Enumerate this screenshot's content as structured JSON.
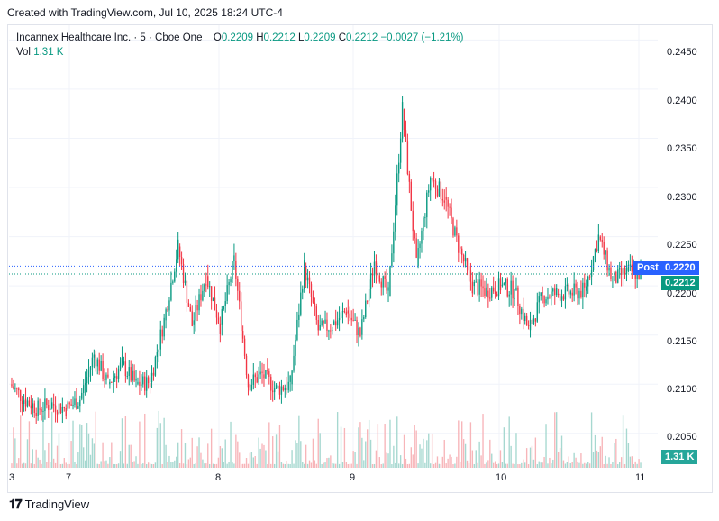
{
  "header": {
    "created_text": "Created with TradingView.com, Jul 10, 2025 18:24 UTC-4"
  },
  "legend": {
    "symbol": "Incannex Healthcare Inc. · 5 · Cboe One",
    "o_label": "O",
    "o_value": "0.2209",
    "h_label": "H",
    "h_value": "0.2212",
    "l_label": "L",
    "l_value": "0.2209",
    "c_label": "C",
    "c_value": "0.2212",
    "change": "−0.0027 (−1.21%)",
    "vol_label": "Vol",
    "vol_value": "1.31 K"
  },
  "colors": {
    "up": "#089981",
    "down": "#f23645",
    "up_volume": "#a6d8d0",
    "down_volume": "#f7b5b9",
    "post_tag": "#2962ff",
    "grid": "#f0f3fa"
  },
  "footer": {
    "brand": "TradingView"
  },
  "chart_data": {
    "type": "candlestick",
    "timeframe": "5",
    "ylim": [
      0.2015,
      0.2465
    ],
    "y_ticks": [
      "0.2450",
      "0.2400",
      "0.2350",
      "0.2300",
      "0.2250",
      "0.2200",
      "0.2150",
      "0.2100",
      "0.2050"
    ],
    "x_ticks": [
      "3",
      "7",
      "8",
      "9",
      "10",
      "11"
    ],
    "post_price_label": "Post",
    "post_price": "0.2220",
    "last_price": "0.2212",
    "volume_label": "1.31 K",
    "price_path": [
      [
        0.21,
        0.2085
      ],
      [
        0.2085,
        0.2075
      ],
      [
        0.2075,
        0.208
      ],
      [
        0.208,
        0.2075
      ],
      [
        0.2075,
        0.2085
      ],
      [
        0.2085,
        0.213
      ],
      [
        0.213,
        0.21
      ],
      [
        0.21,
        0.212
      ],
      [
        0.212,
        0.21
      ],
      [
        0.21,
        0.2102
      ],
      [
        0.2102,
        0.2165
      ],
      [
        0.2165,
        0.224
      ],
      [
        0.224,
        0.216
      ],
      [
        0.216,
        0.221
      ],
      [
        0.221,
        0.216
      ],
      [
        0.216,
        0.2225
      ],
      [
        0.2225,
        0.21
      ],
      [
        0.21,
        0.211
      ],
      [
        0.211,
        0.2095
      ],
      [
        0.2095,
        0.21
      ],
      [
        0.21,
        0.222
      ],
      [
        0.222,
        0.2155
      ],
      [
        0.2155,
        0.216
      ],
      [
        0.216,
        0.2175
      ],
      [
        0.2175,
        0.215
      ],
      [
        0.215,
        0.2225
      ],
      [
        0.2225,
        0.219
      ],
      [
        0.219,
        0.238
      ],
      [
        0.238,
        0.222
      ],
      [
        0.222,
        0.231
      ],
      [
        0.231,
        0.229
      ],
      [
        0.229,
        0.224
      ],
      [
        0.224,
        0.22
      ],
      [
        0.22,
        0.2195
      ],
      [
        0.2195,
        0.22
      ],
      [
        0.22,
        0.2195
      ],
      [
        0.2195,
        0.2155
      ],
      [
        0.2155,
        0.219
      ],
      [
        0.219,
        0.2192
      ],
      [
        0.2192,
        0.2193
      ],
      [
        0.2193,
        0.2195
      ],
      [
        0.2195,
        0.225
      ],
      [
        0.225,
        0.2205
      ],
      [
        0.2205,
        0.2215
      ],
      [
        0.2215,
        0.2212
      ]
    ]
  }
}
